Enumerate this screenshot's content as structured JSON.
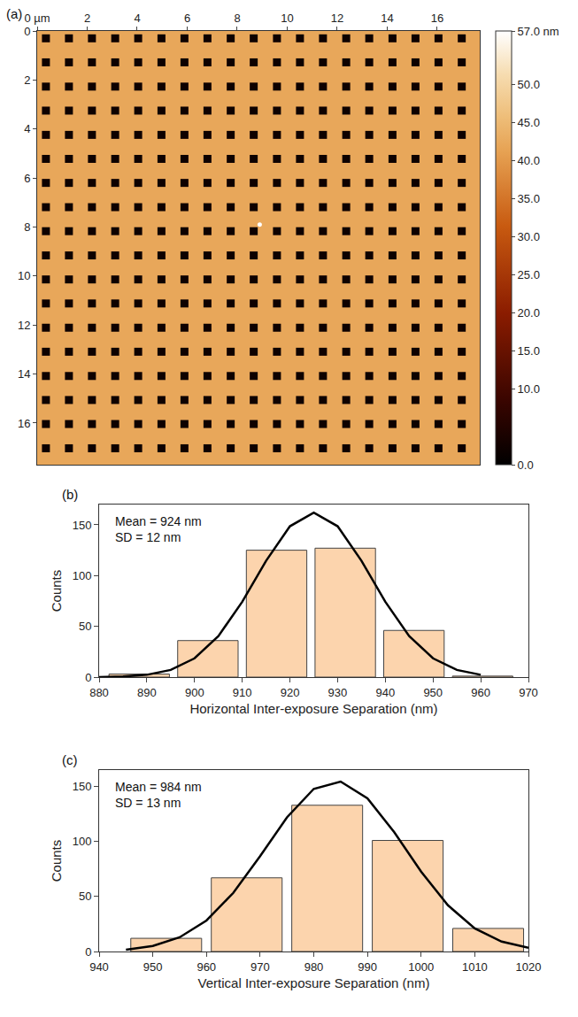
{
  "chart_data": [
    {
      "panel": "(a)",
      "type": "heatmap",
      "x": [
        0.35,
        1.27,
        2.19,
        3.12,
        4.04,
        4.97,
        5.89,
        6.81,
        7.74,
        8.66,
        9.59,
        10.51,
        11.43,
        12.36,
        13.28,
        14.21,
        15.13,
        16.05,
        16.98
      ],
      "y": [
        0.3,
        1.28,
        2.27,
        3.25,
        4.24,
        5.22,
        6.2,
        7.19,
        8.17,
        9.16,
        10.14,
        11.12,
        12.11,
        13.09,
        14.08,
        15.06,
        16.04,
        17.03
      ],
      "pit_depth": 2,
      "background": 42,
      "features": [
        {
          "x": 8.9,
          "y": 7.9,
          "z": 57
        }
      ],
      "xlim": [
        0,
        17.7
      ],
      "ylim": [
        0,
        17.7
      ],
      "xticks": [
        {
          "value": 0,
          "label": "0 µm"
        },
        2,
        4,
        6,
        8,
        10,
        12,
        14,
        16
      ],
      "yticks": [
        0,
        2,
        4,
        6,
        8,
        10,
        12,
        14,
        16
      ],
      "colorbar": {
        "range": [
          0,
          57
        ],
        "ticks": [
          {
            "value": 57,
            "label": "57.0 nm"
          },
          {
            "value": 50,
            "label": "50.0"
          },
          {
            "value": 45,
            "label": "45.0"
          },
          {
            "value": 40,
            "label": "40.0"
          },
          {
            "value": 35,
            "label": "35.0"
          },
          {
            "value": 30,
            "label": "30.0"
          },
          {
            "value": 25,
            "label": "25.0"
          },
          {
            "value": 20,
            "label": "20.0"
          },
          {
            "value": 15,
            "label": "15.0"
          },
          {
            "value": 10,
            "label": "10.0"
          },
          {
            "value": 0,
            "label": "0.0"
          }
        ]
      }
    },
    {
      "panel": "(b)",
      "type": "histogram",
      "bins": [
        881.2,
        895.6,
        910.0,
        924.4,
        938.8,
        953.2,
        967.6
      ],
      "counts": [
        3,
        36,
        125,
        127,
        46,
        1
      ],
      "color": "#fcd4ad",
      "fit": {
        "x": [
          880,
          885,
          890,
          895,
          900,
          905,
          910,
          915,
          920,
          925,
          930,
          935,
          940,
          945,
          950,
          955,
          960
        ],
        "values": [
          0.1,
          0.6,
          2.3,
          7.1,
          18.5,
          40.4,
          74.2,
          114.5,
          148.6,
          162,
          148.6,
          114.5,
          74.2,
          40.4,
          18.5,
          7.1,
          2.3
        ]
      },
      "annotations": [
        "Mean = 924 nm",
        "SD = 12 nm"
      ],
      "xlabel": "Horizontal Inter-exposure Separation (nm)",
      "ylabel": "Counts",
      "xlim": [
        880,
        970
      ],
      "xticks": [
        880,
        890,
        900,
        910,
        920,
        930,
        940,
        950,
        960,
        970
      ],
      "ylim": [
        0,
        170
      ],
      "yticks": [
        0,
        50,
        100,
        150
      ]
    },
    {
      "panel": "(c)",
      "type": "histogram",
      "bins": [
        945,
        960,
        975,
        990,
        1005,
        1020
      ],
      "counts": [
        12,
        67,
        133,
        101,
        21
      ],
      "color": "#fcd4ad",
      "fit": {
        "x": [
          945,
          950,
          955,
          960,
          965,
          970,
          975,
          980,
          985,
          990,
          995,
          1000,
          1005,
          1010,
          1015,
          1020
        ],
        "values": [
          1.7,
          5.1,
          12.9,
          28.2,
          53.3,
          86.8,
          122,
          147.9,
          154.5,
          139.3,
          108.4,
          72.7,
          42,
          21,
          9,
          3.4
        ]
      },
      "annotations": [
        "Mean = 984 nm",
        "SD = 13 nm"
      ],
      "xlabel": "Vertical Inter-exposure Separation (nm)",
      "ylabel": "Counts",
      "xlim": [
        940,
        1020
      ],
      "xticks": [
        940,
        950,
        960,
        970,
        980,
        990,
        1000,
        1010,
        1020
      ],
      "ylim": [
        0,
        165
      ],
      "yticks": [
        0,
        50,
        100,
        150
      ]
    }
  ]
}
